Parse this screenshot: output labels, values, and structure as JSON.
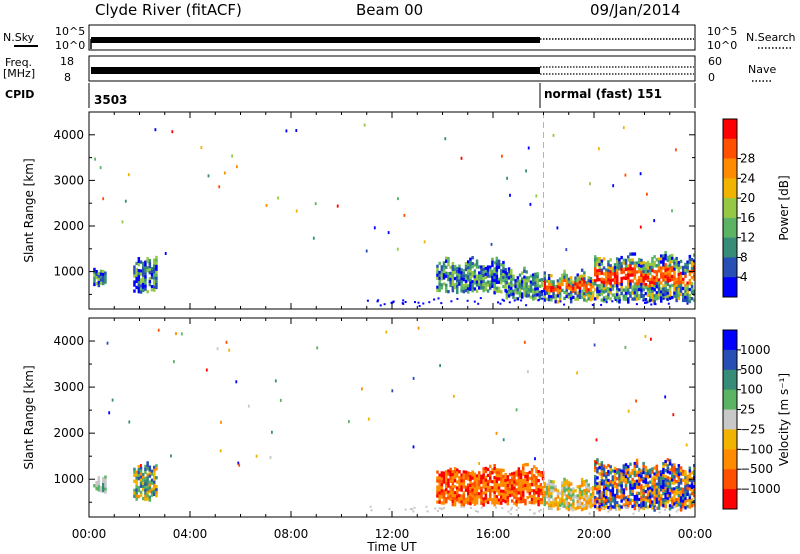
{
  "header": {
    "station": "Clyde River (fitACF)",
    "beam": "Beam 00",
    "date": "09/Jan/2014"
  },
  "strip_labels": {
    "nsky": "N.Sky",
    "nsky_top": "10^5",
    "nsky_bottom": "10^0",
    "nsearch": "N.Search",
    "nsearch_top": "10^5",
    "nsearch_bottom": "10^0",
    "freq": "Freq.",
    "freq_unit": "[MHz]",
    "freq_top": "18",
    "freq_bottom": "8",
    "nave": "Nave",
    "nave_top": "60",
    "nave_bottom": "0",
    "cpid": "CPID",
    "cpid_left": "3503",
    "cpid_right": "normal (fast) 151"
  },
  "colors": {
    "power_scale": [
      "#0000ff",
      "#2850b4",
      "#378c78",
      "#5ab464",
      "#96c846",
      "#f0b400",
      "#ff8c00",
      "#ff5000",
      "#ff0000"
    ],
    "velocity_scale": [
      "#ff0000",
      "#ff5000",
      "#ff8c00",
      "#f0b400",
      "#c8c8c8",
      "#5ab464",
      "#378c78",
      "#2850b4",
      "#0000ff"
    ],
    "dashed_line": "#b4b4b4"
  },
  "chart_data": [
    {
      "type": "heatmap",
      "title": "",
      "ylabel": "Slant Range [km]",
      "xlabel": "",
      "xlim": [
        "00:00",
        "24:00"
      ],
      "ylim": [
        180,
        4500
      ],
      "x_ticks": [
        "00:00",
        "04:00",
        "08:00",
        "12:00",
        "16:00",
        "20:00",
        "00:00"
      ],
      "y_ticks": [
        1000,
        2000,
        3000,
        4000
      ],
      "colorbar": {
        "label": "Power [dB]",
        "ticks": [
          "4",
          "8",
          "12",
          "16",
          "20",
          "24",
          "28"
        ]
      },
      "mode_change_time": "18:00",
      "regions": [
        {
          "t_start": "00:10",
          "t_end": "00:40",
          "r_min": 700,
          "r_max": 1150,
          "level": "low"
        },
        {
          "t_start": "01:45",
          "t_end": "02:40",
          "r_min": 550,
          "r_max": 1400,
          "level": "low"
        },
        {
          "t_start": "13:45",
          "t_end": "16:30",
          "r_min": 550,
          "r_max": 1350,
          "level": "medium"
        },
        {
          "t_start": "16:30",
          "t_end": "18:00",
          "r_min": 400,
          "r_max": 1100,
          "level": "medium"
        },
        {
          "t_start": "18:00",
          "t_end": "20:00",
          "r_min": 350,
          "r_max": 1050,
          "level": "high"
        },
        {
          "t_start": "20:00",
          "t_end": "24:00",
          "r_min": 350,
          "r_max": 1450,
          "level": "high"
        }
      ]
    },
    {
      "type": "heatmap",
      "title": "",
      "ylabel": "Slant Range [km]",
      "xlabel": "Time UT",
      "xlim": [
        "00:00",
        "24:00"
      ],
      "ylim": [
        180,
        4500
      ],
      "x_ticks": [
        "00:00",
        "04:00",
        "08:00",
        "12:00",
        "16:00",
        "20:00",
        "00:00"
      ],
      "y_ticks": [
        1000,
        2000,
        3000,
        4000
      ],
      "colorbar": {
        "label": "Velocity [m s⁻¹]",
        "ticks": [
          "1000",
          "500",
          "100",
          "25",
          "−25",
          "−100",
          "−500",
          "−1000"
        ]
      },
      "mode_change_time": "18:00",
      "regions": [
        {
          "t_start": "00:10",
          "t_end": "00:40",
          "r_min": 700,
          "r_max": 1150,
          "level": "green"
        },
        {
          "t_start": "01:45",
          "t_end": "02:40",
          "r_min": 550,
          "r_max": 1400,
          "level": "mixed"
        },
        {
          "t_start": "13:45",
          "t_end": "18:00",
          "r_min": 450,
          "r_max": 1350,
          "level": "orange-red"
        },
        {
          "t_start": "18:00",
          "t_end": "20:00",
          "r_min": 350,
          "r_max": 1050,
          "level": "orange"
        },
        {
          "t_start": "20:00",
          "t_end": "24:00",
          "r_min": 350,
          "r_max": 1450,
          "level": "mixed-blue-orange"
        }
      ]
    }
  ]
}
